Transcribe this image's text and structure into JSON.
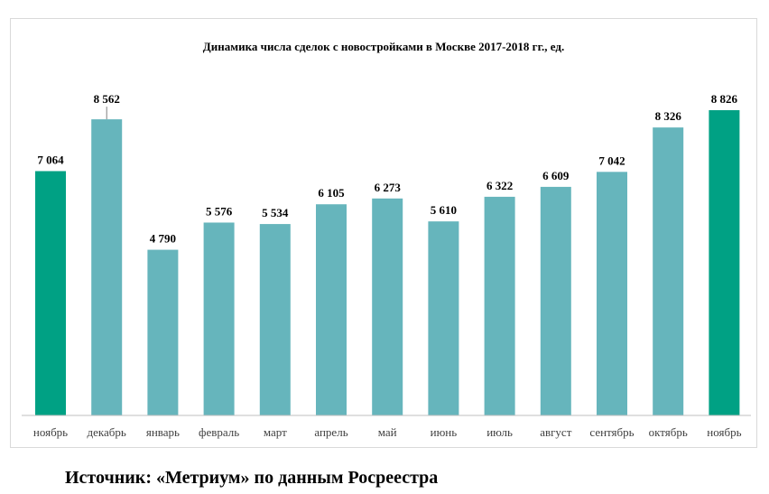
{
  "chart_data": {
    "type": "bar",
    "title": "Динамика числа сделок с новостройками в Москве 2017-2018 гг., ед.",
    "categories": [
      "ноябрь",
      "декабрь",
      "январь",
      "февраль",
      "март",
      "апрель",
      "май",
      "июнь",
      "июль",
      "август",
      "сентябрь",
      "октябрь",
      "ноябрь"
    ],
    "values": [
      7064,
      8562,
      4790,
      5576,
      5534,
      6105,
      6273,
      5610,
      6322,
      6609,
      7042,
      8326,
      8826
    ],
    "value_labels": [
      "7 064",
      "8 562",
      "4 790",
      "5 576",
      "5 534",
      "6 105",
      "6 273",
      "5 610",
      "6 322",
      "6 609",
      "7 042",
      "8 326",
      "8 826"
    ],
    "highlight_indices": [
      0,
      12
    ],
    "ylim": [
      0,
      9500
    ],
    "grid": false,
    "xlabel": "",
    "ylabel": "",
    "colors": {
      "bar": "#66b5bc",
      "highlight": "#00a184",
      "axis": "#bfbfbf"
    }
  },
  "footer": {
    "source": "Источник: «Метриум» по данным Росреестра"
  }
}
